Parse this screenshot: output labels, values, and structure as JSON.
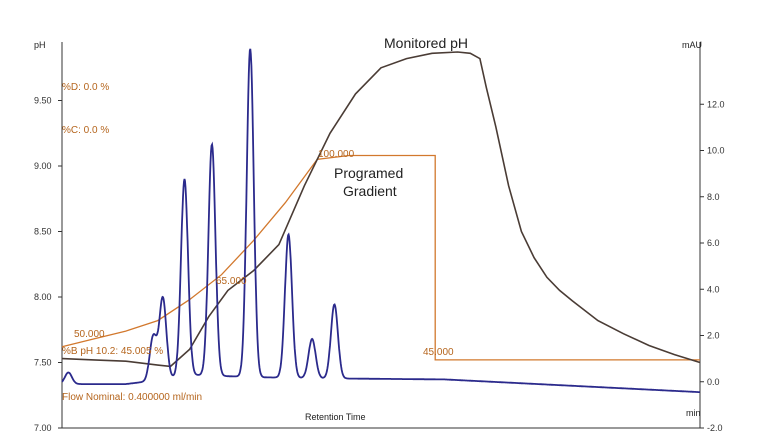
{
  "chart_data": {
    "type": "line",
    "title": "Monitored pH",
    "xlabel": "Retention Time",
    "x_unit": "min",
    "ylabel_left": "pH",
    "ylabel_right": "mAU",
    "ylim_left": [
      7.0,
      10.0
    ],
    "yticks_left": [
      "7.00",
      "7.50",
      "8.00",
      "8.50",
      "9.00",
      "9.50"
    ],
    "ylim_right": [
      -2.0,
      14.0
    ],
    "yticks_right": [
      "-2.0",
      "0.0",
      "2.0",
      "4.0",
      "6.0",
      "8.0",
      "10.0",
      "12.0"
    ],
    "xlim": [
      0,
      100
    ],
    "annotations": {
      "pct_d": "%D: 0.0 %",
      "pct_c": "%C: 0.0 %",
      "pct_b": "%B pH 10.2: 45.005 %",
      "flow": "Flow Nominal: 0.400000 ml/min",
      "gradient_label_line1": "Programed",
      "gradient_label_line2": "Gradient",
      "grad_50": "50.000",
      "grad_65": "65.000",
      "grad_100": "100.000",
      "grad_45": "45.000"
    },
    "series": [
      {
        "name": "Monitored pH",
        "axis": "left",
        "color": "#4a3c35",
        "x": [
          0,
          5,
          10,
          15,
          17,
          20,
          23,
          26,
          30,
          34,
          38,
          42,
          46,
          50,
          54,
          58,
          62,
          64,
          65.5,
          66.5,
          68,
          70,
          72,
          74,
          76,
          78,
          80,
          84,
          88,
          92,
          96,
          100
        ],
        "y": [
          7.53,
          7.52,
          7.51,
          7.48,
          7.47,
          7.6,
          7.85,
          8.05,
          8.2,
          8.4,
          8.85,
          9.25,
          9.55,
          9.75,
          9.82,
          9.86,
          9.87,
          9.86,
          9.82,
          9.6,
          9.3,
          8.85,
          8.5,
          8.3,
          8.15,
          8.05,
          7.97,
          7.82,
          7.72,
          7.63,
          7.56,
          7.5
        ]
      },
      {
        "name": "",
        "axis": "left",
        "color": "#d2782d",
        "x": [
          0,
          5,
          10,
          15,
          20,
          25,
          30,
          35,
          40,
          45,
          55,
          58.5,
          58.5,
          100
        ],
        "y": [
          7.62,
          7.68,
          7.74,
          7.82,
          7.98,
          8.17,
          8.43,
          8.72,
          9.05,
          9.08,
          9.08,
          9.08,
          7.52,
          7.52
        ]
      },
      {
        "name": "",
        "axis": "right",
        "color": "#2b2a8c",
        "peaks": [
          {
            "x": 1.0,
            "height": 0.5
          },
          {
            "x": 14.3,
            "height": 1.9
          },
          {
            "x": 15.8,
            "height": 3.5
          },
          {
            "x": 19.2,
            "height": 8.5
          },
          {
            "x": 23.5,
            "height": 10.0
          },
          {
            "x": 29.5,
            "height": 14.2
          },
          {
            "x": 35.5,
            "height": 6.2
          },
          {
            "x": 39.2,
            "height": 1.7
          },
          {
            "x": 42.7,
            "height": 3.2
          }
        ],
        "baseline": [
          [
            0,
            -0.1
          ],
          [
            10,
            -0.1
          ],
          [
            13,
            0.0
          ],
          [
            20,
            0.3
          ],
          [
            30,
            0.2
          ],
          [
            40,
            0.15
          ],
          [
            60,
            0.1
          ],
          [
            100,
            -0.45
          ]
        ]
      }
    ]
  }
}
